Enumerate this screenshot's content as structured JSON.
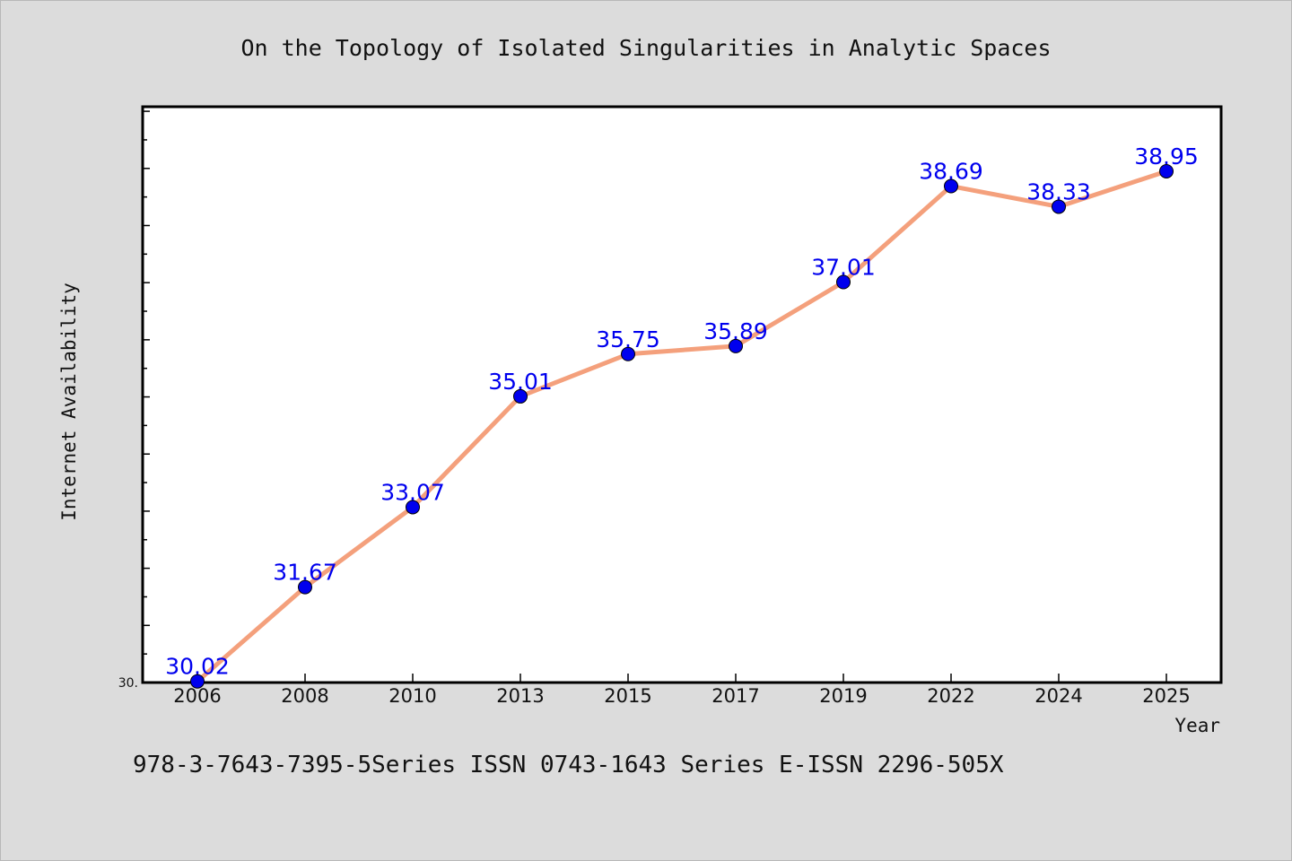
{
  "chart_data": {
    "type": "line",
    "title": "On the Topology of Isolated Singularities in Analytic Spaces",
    "xlabel": "Year",
    "ylabel": "Internet Availability",
    "categories": [
      "2006",
      "2008",
      "2010",
      "2013",
      "2015",
      "2017",
      "2019",
      "2022",
      "2024",
      "2025"
    ],
    "series": [
      {
        "values": [
          30.02,
          31.67,
          33.07,
          35.01,
          35.75,
          35.89,
          37.01,
          38.69,
          38.33,
          38.95
        ],
        "data_labels": [
          "30.02",
          "31.67",
          "33.07",
          "35.01",
          "35.75",
          "35.89",
          "37.01",
          "38.69",
          "38.33",
          "38.95"
        ]
      }
    ],
    "ylim": [
      30.0,
      40.08
    ],
    "y_tick_label": "30.",
    "grid": false,
    "line_color": "#f4a07c",
    "marker_color": "#0000ee",
    "label_color": "#0000ee"
  },
  "footer": {
    "text": "978-3-7643-7395-5Series ISSN 0743-1643 Series E-ISSN 2296-505X"
  }
}
